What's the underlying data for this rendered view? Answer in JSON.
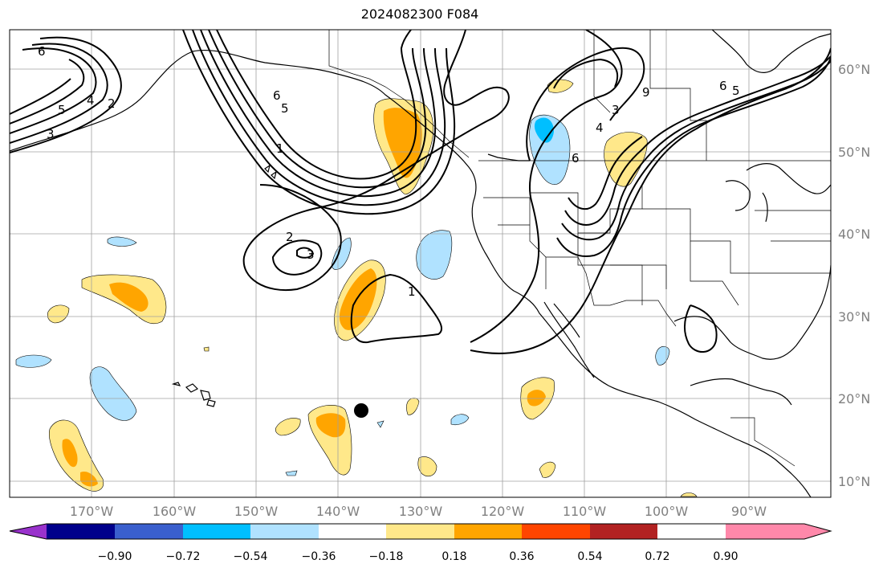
{
  "title": "2024082300 F084",
  "map": {
    "projection": "plate-carree",
    "lon_range": [
      -180,
      -80
    ],
    "lat_range": [
      8,
      65
    ],
    "grid": true
  },
  "lat_labels": [
    "60°N",
    "50°N",
    "40°N",
    "30°N",
    "20°N",
    "10°N"
  ],
  "lon_labels": [
    "170°W",
    "160°W",
    "150°W",
    "140°W",
    "130°W",
    "120°W",
    "110°W",
    "100°W",
    "90°W"
  ],
  "contour_labels": [
    "6",
    "5",
    "4",
    "2",
    "3",
    "6",
    "5",
    "1",
    "2",
    "3",
    "1",
    "3",
    "4",
    "6",
    "9",
    "6",
    "5"
  ],
  "colorbar": {
    "tick_labels": [
      "−0.90",
      "−0.72",
      "−0.54",
      "−0.36",
      "−0.18",
      "0.18",
      "0.36",
      "0.54",
      "0.72",
      "0.90"
    ],
    "colors": [
      "#9932cc",
      "#00008b",
      "#3a5fcd",
      "#00bfff",
      "#b0e2ff",
      "#ffffff",
      "#ffe88a",
      "#ffa500",
      "#ff4500",
      "#b22222",
      "#ff88aa"
    ]
  },
  "marker": {
    "name": "storm-position",
    "lon": -137.2,
    "lat": 18.6
  }
}
